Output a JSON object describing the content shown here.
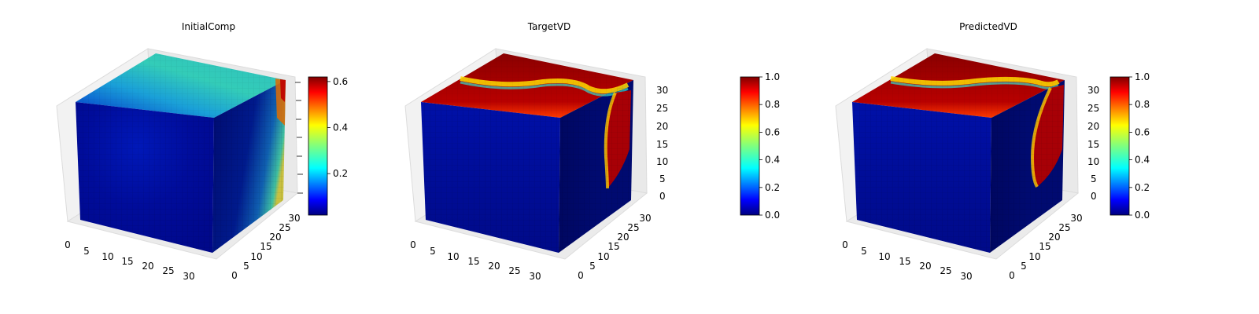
{
  "chart_data": [
    {
      "type": "heatmap",
      "title": "InitialComp",
      "x_ticks": [
        "0",
        "5",
        "10",
        "15",
        "20",
        "25",
        "30"
      ],
      "y_ticks": [
        "0",
        "5",
        "10",
        "15",
        "20",
        "25",
        "30"
      ],
      "z_ticks": [],
      "xlim": [
        0,
        32
      ],
      "ylim": [
        0,
        32
      ],
      "zlim": [
        0,
        32
      ],
      "colormap": "jet",
      "colorbar": {
        "vmin": 0.02,
        "vmax": 0.62,
        "ticks": [
          "0.2",
          "0.4",
          "0.6"
        ],
        "tick_values": [
          0.2,
          0.4,
          0.6
        ]
      }
    },
    {
      "type": "heatmap",
      "title": "TargetVD",
      "x_ticks": [
        "0",
        "5",
        "10",
        "15",
        "20",
        "25",
        "30"
      ],
      "y_ticks": [
        "0",
        "5",
        "10",
        "15",
        "20",
        "25",
        "30"
      ],
      "z_ticks": [
        "0",
        "5",
        "10",
        "15",
        "20",
        "25",
        "30"
      ],
      "xlim": [
        0,
        32
      ],
      "ylim": [
        0,
        32
      ],
      "zlim": [
        0,
        32
      ],
      "colormap": "jet",
      "colorbar": {
        "vmin": 0.0,
        "vmax": 1.0,
        "ticks": [
          "0.0",
          "0.2",
          "0.4",
          "0.6",
          "0.8",
          "1.0"
        ],
        "tick_values": [
          0,
          0.2,
          0.4,
          0.6,
          0.8,
          1.0
        ]
      }
    },
    {
      "type": "heatmap",
      "title": "PredictedVD",
      "x_ticks": [
        "0",
        "5",
        "10",
        "15",
        "20",
        "25",
        "30"
      ],
      "y_ticks": [
        "0",
        "5",
        "10",
        "15",
        "20",
        "25",
        "30"
      ],
      "z_ticks": [
        "0",
        "5",
        "10",
        "15",
        "20",
        "25",
        "30"
      ],
      "xlim": [
        0,
        32
      ],
      "ylim": [
        0,
        32
      ],
      "zlim": [
        0,
        32
      ],
      "colormap": "jet",
      "colorbar": {
        "vmin": 0.0,
        "vmax": 1.0,
        "ticks": [
          "0.0",
          "0.2",
          "0.4",
          "0.6",
          "0.8",
          "1.0"
        ],
        "tick_values": [
          0,
          0.2,
          0.4,
          0.6,
          0.8,
          1.0
        ]
      }
    }
  ],
  "colors": {
    "jet": [
      "#00007f",
      "#0000ff",
      "#007fff",
      "#00ffff",
      "#7fff7f",
      "#ffff00",
      "#ff7f00",
      "#ff0000",
      "#7f0000"
    ],
    "pane": "#f2f2f2",
    "pane_edge": "#dddddd"
  }
}
